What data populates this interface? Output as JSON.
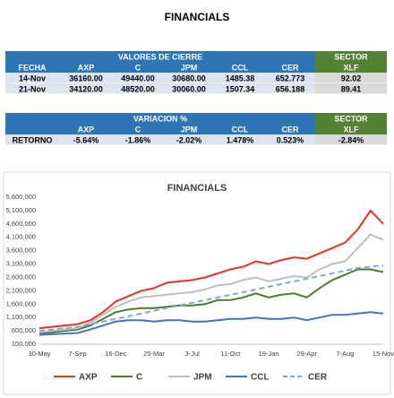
{
  "title": "FINANCIALS",
  "table1": {
    "group": "VALORES DE CIERRE",
    "sector": "SECTOR",
    "columns": [
      "FECHA",
      "AXP",
      "C",
      "JPM",
      "CCL",
      "CER",
      "XLF"
    ],
    "rows": [
      [
        "14-Nov",
        "36160.00",
        "49440.00",
        "30680.00",
        "1485.38",
        "652.773",
        "92.02"
      ],
      [
        "21-Nov",
        "34120.00",
        "48520.00",
        "30060.00",
        "1507.34",
        "656.188",
        "89.41"
      ]
    ]
  },
  "table2": {
    "group": "VARIACION %",
    "sector": "SECTOR",
    "columns": [
      "AXP",
      "C",
      "JPM",
      "CCL",
      "CER",
      "XLF"
    ],
    "rows": [
      [
        "RETORNO",
        "-5.64%",
        "-1.86%",
        "-2.02%",
        "1.478%",
        "0.523%",
        "-2.84%"
      ]
    ]
  },
  "chart_data": {
    "type": "line",
    "title": "FINANCIALS",
    "categories": [
      "30-May",
      null,
      null,
      "7-Sep",
      null,
      null,
      "16-Dec",
      null,
      null,
      "25-Mar",
      null,
      null,
      "3-Jul",
      null,
      null,
      "11-Oct",
      null,
      null,
      "19-Jan",
      null,
      null,
      "29-Apr",
      null,
      null,
      "7-Aug",
      null,
      null,
      "15-Nov"
    ],
    "ylim": [
      100000,
      5600000
    ],
    "yticks": [
      {
        "value": 100000,
        "label": "100,000"
      },
      {
        "value": 600000,
        "label": "600,000"
      },
      {
        "value": 1100000,
        "label": "1,100,000"
      },
      {
        "value": 1600000,
        "label": "1,600,000"
      },
      {
        "value": 2100000,
        "label": "2,100,000"
      },
      {
        "value": 2600000,
        "label": "2,600,000"
      },
      {
        "value": 3100000,
        "label": "3,100,000"
      },
      {
        "value": 3600000,
        "label": "3,600,000"
      },
      {
        "value": 4100000,
        "label": "4,100,000"
      },
      {
        "value": 4600000,
        "label": "4,600,000"
      },
      {
        "value": 5100000,
        "label": "5,100,000"
      },
      {
        "value": 5600000,
        "label": "5,600,000"
      }
    ],
    "grid": false,
    "legend": "bottom",
    "series": [
      {
        "name": "AXP",
        "color": "#e8322a",
        "style": "solid",
        "values": [
          700000,
          750000,
          800000,
          850000,
          1000000,
          1300000,
          1700000,
          1900000,
          2100000,
          2200000,
          2400000,
          2450000,
          2500000,
          2600000,
          2750000,
          2900000,
          3000000,
          3200000,
          3100000,
          3250000,
          3350000,
          3300000,
          3500000,
          3700000,
          3900000,
          4400000,
          5100000,
          4600000
        ]
      },
      {
        "name": "C",
        "color": "#4a7a2a",
        "style": "solid",
        "values": [
          500000,
          550000,
          600000,
          650000,
          800000,
          1050000,
          1300000,
          1400000,
          1450000,
          1450000,
          1500000,
          1550000,
          1550000,
          1600000,
          1750000,
          1750000,
          1850000,
          2000000,
          1850000,
          1950000,
          2000000,
          1850000,
          2200000,
          2500000,
          2700000,
          2900000,
          2900000,
          2800000
        ]
      },
      {
        "name": "JPM",
        "color": "#bfbfbf",
        "style": "solid",
        "values": [
          550000,
          600000,
          650000,
          700000,
          900000,
          1200000,
          1500000,
          1700000,
          1850000,
          1900000,
          1950000,
          2000000,
          2050000,
          2150000,
          2300000,
          2350000,
          2500000,
          2600000,
          2450000,
          2550000,
          2650000,
          2600000,
          2900000,
          3100000,
          3200000,
          3700000,
          4200000,
          4000000
        ]
      },
      {
        "name": "CCL",
        "color": "#4472c4",
        "style": "solid",
        "values": [
          450000,
          480000,
          500000,
          520000,
          650000,
          800000,
          950000,
          1000000,
          1000000,
          950000,
          1000000,
          1000000,
          950000,
          950000,
          1000000,
          1050000,
          1050000,
          1100000,
          1050000,
          1050000,
          1100000,
          1000000,
          1100000,
          1200000,
          1200000,
          1250000,
          1300000,
          1250000
        ]
      },
      {
        "name": "CER",
        "color": "#7fa8d8",
        "style": "dashed",
        "values": [
          600000,
          650000,
          700000,
          750000,
          850000,
          950000,
          1050000,
          1150000,
          1250000,
          1350000,
          1450000,
          1550000,
          1650000,
          1750000,
          1850000,
          1950000,
          2050000,
          2150000,
          2250000,
          2350000,
          2450000,
          2550000,
          2650000,
          2750000,
          2850000,
          2950000,
          3000000,
          3050000
        ]
      }
    ]
  }
}
